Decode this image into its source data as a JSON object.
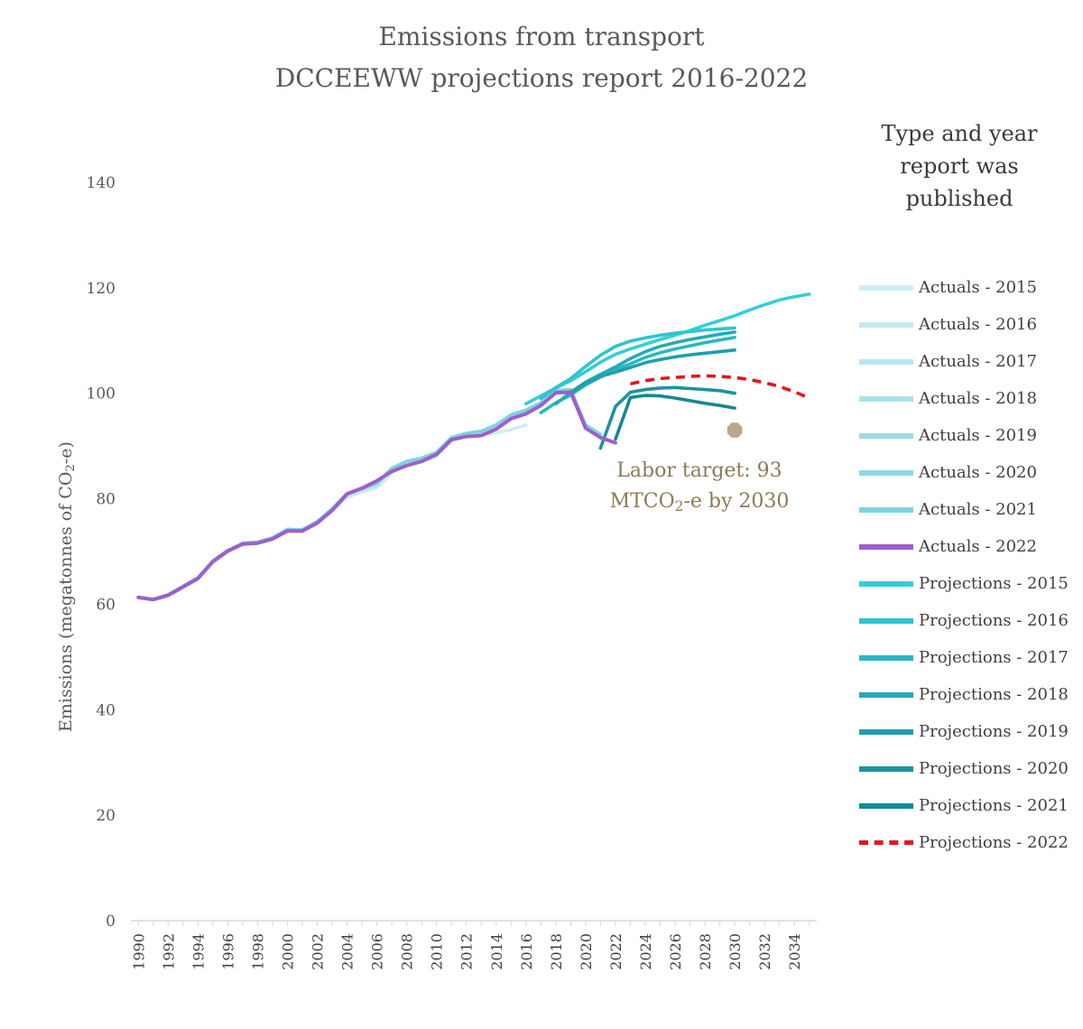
{
  "title": {
    "line1": "Emissions from transport",
    "line2": "DCCEEWW projections report 2016-2022"
  },
  "legend_title": "Type and year report was published",
  "y_axis_label": {
    "main": "Emissions (megatonnes of CO",
    "sub": "2",
    "end": "-e)"
  },
  "annotation": {
    "line1": "Labor target: 93",
    "line2_prefix": "MTCO",
    "line2_sub": "2",
    "line2_suffix": "-e by 2030"
  },
  "chart_data": {
    "type": "line",
    "title": "Emissions from transport DCCEEWW projections report 2016-2022",
    "xlabel": "",
    "ylabel": "Emissions (megatonnes of CO2-e)",
    "ylim": [
      0,
      140
    ],
    "xlim": [
      1990,
      2035
    ],
    "y_ticks": [
      0,
      20,
      40,
      60,
      80,
      100,
      120,
      140
    ],
    "x_ticks": [
      1990,
      1992,
      1994,
      1996,
      1998,
      2000,
      2002,
      2004,
      2006,
      2008,
      2010,
      2012,
      2014,
      2016,
      2018,
      2020,
      2022,
      2024,
      2026,
      2028,
      2030,
      2032,
      2034
    ],
    "grid": false,
    "legend_position": "right",
    "series": [
      {
        "name": "Actuals - 2015",
        "color": "#cdeef3",
        "dashed": false,
        "x": [
          1990,
          1991,
          1992,
          1993,
          1994,
          1995,
          1996,
          1997,
          1998,
          1999,
          2000,
          2001,
          2002,
          2003,
          2004,
          2005,
          2006,
          2007,
          2008,
          2009,
          2010,
          2011,
          2012,
          2013,
          2014,
          2015,
          2016
        ],
        "values": [
          61.2,
          60.8,
          61.6,
          63.1,
          64.7,
          67.9,
          69.9,
          71.4,
          71.6,
          72.3,
          73.9,
          73.8,
          75.3,
          77.6,
          80.3,
          81.3,
          82.1,
          84.9,
          86.4,
          87.0,
          88.1,
          91.0,
          91.8,
          92.2,
          92.5,
          93.1,
          94.0
        ]
      },
      {
        "name": "Actuals - 2016",
        "color": "#c2eaf0",
        "dashed": false,
        "x": [
          1990,
          1991,
          1992,
          1993,
          1994,
          1995,
          1996,
          1997,
          1998,
          1999,
          2000,
          2001,
          2002,
          2003,
          2004,
          2005,
          2006,
          2007,
          2008,
          2009,
          2010,
          2011,
          2012,
          2013,
          2014,
          2015
        ],
        "values": [
          61.3,
          60.9,
          61.8,
          63.3,
          64.9,
          68.1,
          70.1,
          71.5,
          71.7,
          72.5,
          74.1,
          74.0,
          75.5,
          77.8,
          80.6,
          81.6,
          82.4,
          85.3,
          86.7,
          87.3,
          88.4,
          91.3,
          92.1,
          92.5,
          93.5,
          95.1
        ]
      },
      {
        "name": "Actuals - 2017",
        "color": "#b6e6ee",
        "dashed": false,
        "x": [
          1990,
          1991,
          1992,
          1993,
          1994,
          1995,
          1996,
          1997,
          1998,
          1999,
          2000,
          2001,
          2002,
          2003,
          2004,
          2005,
          2006,
          2007,
          2008,
          2009,
          2010,
          2011,
          2012,
          2013,
          2014,
          2015,
          2016
        ],
        "values": [
          61.3,
          60.9,
          61.8,
          63.4,
          65.0,
          68.2,
          70.2,
          71.6,
          71.8,
          72.6,
          74.2,
          74.1,
          75.6,
          78.0,
          80.9,
          81.9,
          82.8,
          85.7,
          87.0,
          87.6,
          88.7,
          91.5,
          92.3,
          92.7,
          93.9,
          95.7,
          96.5
        ]
      },
      {
        "name": "Actuals - 2018",
        "color": "#aae2ea",
        "dashed": false,
        "x": [
          1990,
          1991,
          1992,
          1993,
          1994,
          1995,
          1996,
          1997,
          1998,
          1999,
          2000,
          2001,
          2002,
          2003,
          2004,
          2005,
          2006,
          2007,
          2008,
          2009,
          2010,
          2011,
          2012,
          2013,
          2014,
          2015,
          2016,
          2017
        ],
        "values": [
          61.3,
          60.9,
          61.8,
          63.4,
          65.0,
          68.2,
          70.2,
          71.6,
          71.8,
          72.6,
          74.2,
          74.1,
          75.7,
          78.1,
          81.0,
          82.0,
          82.9,
          85.8,
          87.1,
          87.7,
          88.8,
          91.6,
          92.4,
          92.8,
          94.0,
          95.9,
          96.8,
          97.9
        ]
      },
      {
        "name": "Actuals - 2019",
        "color": "#9cdde6",
        "dashed": false,
        "x": [
          1990,
          1991,
          1992,
          1993,
          1994,
          1995,
          1996,
          1997,
          1998,
          1999,
          2000,
          2001,
          2002,
          2003,
          2004,
          2005,
          2006,
          2007,
          2008,
          2009,
          2010,
          2011,
          2012,
          2013,
          2014,
          2015,
          2016,
          2017,
          2018
        ],
        "values": [
          61.3,
          60.9,
          61.8,
          63.4,
          65.0,
          68.2,
          70.2,
          71.6,
          71.8,
          72.6,
          74.2,
          74.1,
          75.7,
          78.1,
          81.0,
          82.0,
          82.9,
          85.8,
          87.1,
          87.7,
          88.8,
          91.6,
          92.4,
          92.8,
          94.0,
          95.9,
          96.8,
          98.2,
          100.4
        ]
      },
      {
        "name": "Actuals - 2020",
        "color": "#8dd8e2",
        "dashed": false,
        "x": [
          1990,
          1991,
          1992,
          1993,
          1994,
          1995,
          1996,
          1997,
          1998,
          1999,
          2000,
          2001,
          2002,
          2003,
          2004,
          2005,
          2006,
          2007,
          2008,
          2009,
          2010,
          2011,
          2012,
          2013,
          2014,
          2015,
          2016,
          2017,
          2018,
          2019
        ],
        "values": [
          61.3,
          60.9,
          61.8,
          63.4,
          65.0,
          68.2,
          70.2,
          71.6,
          71.8,
          72.6,
          74.2,
          74.1,
          75.7,
          78.1,
          81.0,
          82.0,
          82.9,
          85.8,
          87.1,
          87.7,
          88.8,
          91.6,
          92.4,
          92.8,
          94.0,
          95.9,
          96.8,
          98.2,
          100.5,
          100.7
        ]
      },
      {
        "name": "Actuals - 2021",
        "color": "#7ed3de",
        "dashed": false,
        "x": [
          1990,
          1991,
          1992,
          1993,
          1994,
          1995,
          1996,
          1997,
          1998,
          1999,
          2000,
          2001,
          2002,
          2003,
          2004,
          2005,
          2006,
          2007,
          2008,
          2009,
          2010,
          2011,
          2012,
          2013,
          2014,
          2015,
          2016,
          2017,
          2018,
          2019,
          2020,
          2021
        ],
        "values": [
          61.3,
          60.9,
          61.8,
          63.4,
          65.0,
          68.2,
          70.2,
          71.6,
          71.8,
          72.6,
          74.2,
          74.1,
          75.7,
          78.1,
          81.0,
          82.0,
          82.9,
          85.8,
          87.1,
          87.7,
          88.8,
          91.6,
          92.4,
          92.8,
          94.0,
          95.9,
          96.8,
          98.2,
          100.5,
          100.7,
          94.0,
          92.2
        ]
      },
      {
        "name": "Actuals - 2022",
        "color": "#9d5fcc",
        "dashed": false,
        "x": [
          1990,
          1991,
          1992,
          1993,
          1994,
          1995,
          1996,
          1997,
          1998,
          1999,
          2000,
          2001,
          2002,
          2003,
          2004,
          2005,
          2006,
          2007,
          2008,
          2009,
          2010,
          2011,
          2012,
          2013,
          2014,
          2015,
          2016,
          2017,
          2018,
          2019,
          2020,
          2021,
          2022
        ],
        "values": [
          61.3,
          60.9,
          61.7,
          63.3,
          64.9,
          68.1,
          70.1,
          71.4,
          71.6,
          72.4,
          73.9,
          73.9,
          75.4,
          77.8,
          80.9,
          82.0,
          83.4,
          85.2,
          86.3,
          87.1,
          88.4,
          91.2,
          91.8,
          92.0,
          93.2,
          95.2,
          96.1,
          97.7,
          100.1,
          100.2,
          93.4,
          91.6,
          90.6
        ]
      },
      {
        "name": "Projections - 2015",
        "color": "#33cfd6",
        "dashed": false,
        "x": [
          2016,
          2017,
          2018,
          2019,
          2020,
          2021,
          2022,
          2023,
          2024,
          2025,
          2026,
          2027,
          2028,
          2029,
          2030,
          2031,
          2032,
          2033,
          2034,
          2035
        ],
        "values": [
          98.0,
          99.5,
          101.0,
          102.4,
          104.1,
          105.9,
          107.4,
          108.4,
          109.3,
          110.2,
          111.0,
          111.9,
          112.9,
          113.8,
          114.7,
          115.8,
          116.8,
          117.7,
          118.3,
          118.8
        ]
      },
      {
        "name": "Projections - 2016",
        "color": "#2ec4cf",
        "dashed": false,
        "x": [
          2017,
          2018,
          2019,
          2020,
          2021,
          2022,
          2023,
          2024,
          2025,
          2026,
          2027,
          2028,
          2029,
          2030
        ],
        "values": [
          99.0,
          101.1,
          102.8,
          105.1,
          107.2,
          108.9,
          109.9,
          110.5,
          111.0,
          111.4,
          111.7,
          112.0,
          112.2,
          112.4
        ]
      },
      {
        "name": "Projections - 2017",
        "color": "#29b8c4",
        "dashed": false,
        "x": [
          2017,
          2018,
          2019,
          2020,
          2021,
          2022,
          2023,
          2024,
          2025,
          2026,
          2027,
          2028,
          2029,
          2030
        ],
        "values": [
          96.3,
          98.2,
          99.7,
          101.6,
          103.1,
          104.5,
          105.6,
          106.8,
          107.7,
          108.4,
          109.0,
          109.6,
          110.1,
          110.6
        ]
      },
      {
        "name": "Projections - 2018",
        "color": "#24abb8",
        "dashed": false,
        "x": [
          2018,
          2019,
          2020,
          2021,
          2022,
          2023,
          2024,
          2025,
          2026,
          2027,
          2028,
          2029,
          2030
        ],
        "values": [
          98.0,
          100.2,
          102.1,
          103.6,
          105.0,
          106.6,
          107.9,
          108.9,
          109.6,
          110.2,
          110.7,
          111.2,
          111.6
        ]
      },
      {
        "name": "Projections - 2019",
        "color": "#1f9fac",
        "dashed": false,
        "x": [
          2019,
          2020,
          2021,
          2022,
          2023,
          2024,
          2025,
          2026,
          2027,
          2028,
          2029,
          2030
        ],
        "values": [
          100.0,
          101.9,
          103.2,
          104.0,
          104.9,
          105.8,
          106.4,
          106.9,
          107.3,
          107.6,
          107.9,
          108.2
        ]
      },
      {
        "name": "Projections - 2020",
        "color": "#1b93a0",
        "dashed": false,
        "x": [
          2021,
          2022,
          2023,
          2024,
          2025,
          2026,
          2027,
          2028,
          2029,
          2030
        ],
        "values": [
          89.6,
          97.5,
          100.2,
          100.7,
          101.0,
          101.1,
          100.9,
          100.7,
          100.5,
          100.0
        ]
      },
      {
        "name": "Projections - 2021",
        "color": "#168894",
        "dashed": false,
        "x": [
          2022,
          2023,
          2024,
          2025,
          2026,
          2027,
          2028,
          2029,
          2030
        ],
        "values": [
          91.3,
          99.2,
          99.6,
          99.5,
          99.1,
          98.6,
          98.1,
          97.7,
          97.2
        ]
      },
      {
        "name": "Projections - 2022",
        "color": "#e8141e",
        "dashed": true,
        "x": [
          2023,
          2024,
          2025,
          2026,
          2027,
          2028,
          2029,
          2030,
          2031,
          2032,
          2033,
          2034,
          2035
        ],
        "values": [
          101.8,
          102.4,
          102.8,
          103.0,
          103.2,
          103.3,
          103.2,
          103.0,
          102.6,
          102.0,
          101.3,
          100.3,
          99.1
        ]
      }
    ],
    "target_marker": {
      "label": "Labor target",
      "x": 2030,
      "y": 93,
      "color": "#b9a98a"
    }
  }
}
